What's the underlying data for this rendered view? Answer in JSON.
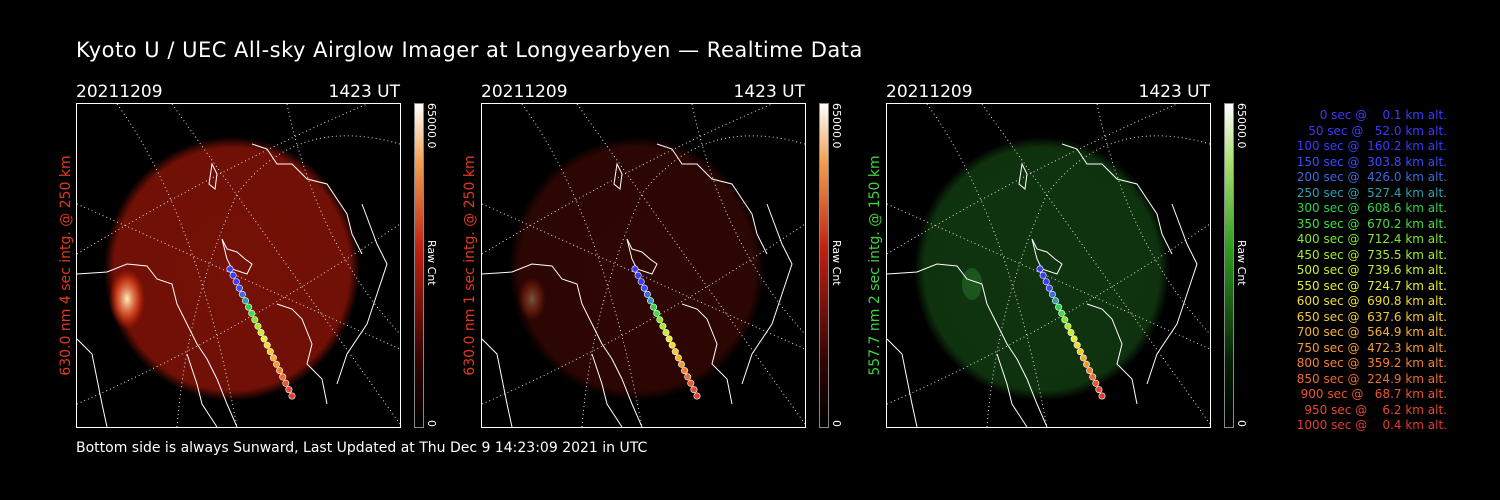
{
  "title": "Kyoto U / UEC All-sky Airglow Imager at Longyearbyen — Realtime Data",
  "footer": "Bottom side is always Sunward, Last Updated at Thu Dec  9 14:23:09 2021 in UTC",
  "panels": [
    {
      "date": "20211209",
      "time": "1423 UT",
      "side_label": "630.0 nm 4 sec intg. @ 250 km",
      "label_color": "#e03a1e",
      "cbar_max": "65000.0",
      "cbar_unit": "Raw Cnt",
      "cbar_min": "0",
      "glow": "#8a1408",
      "glow_opacity": 0.85,
      "cbar_color": "#c02010"
    },
    {
      "date": "20211209",
      "time": "1423 UT",
      "side_label": "630.0 nm 1 sec intg. @ 250 km",
      "label_color": "#e03a1e",
      "cbar_max": "65000.0",
      "cbar_unit": "Raw Cnt",
      "cbar_min": "0",
      "glow": "#3a0804",
      "glow_opacity": 0.8,
      "cbar_color": "#c02010"
    },
    {
      "date": "20211209",
      "time": "1423 UT",
      "side_label": "557.7 nm 2 sec intg. @ 150 km",
      "label_color": "#3fd43f",
      "cbar_max": "65000.0",
      "cbar_unit": "Raw Cnt",
      "cbar_min": "0",
      "glow": "#123d12",
      "glow_opacity": 0.85,
      "cbar_color": "#2e9a20"
    }
  ],
  "legend": [
    {
      "text": "0 sec @    0.1 km alt.",
      "color": "#3a3aff"
    },
    {
      "text": "50 sec @   52.0 km alt.",
      "color": "#3a3aff"
    },
    {
      "text": "100 sec @  160.2 km alt.",
      "color": "#3a3aff"
    },
    {
      "text": "150 sec @  303.8 km alt.",
      "color": "#3a4aff"
    },
    {
      "text": "200 sec @  426.0 km alt.",
      "color": "#3a6ae0"
    },
    {
      "text": "250 sec @  527.4 km alt.",
      "color": "#2aa0b0"
    },
    {
      "text": "300 sec @  608.6 km alt.",
      "color": "#2cd24a"
    },
    {
      "text": "350 sec @  670.2 km alt.",
      "color": "#3ee03e"
    },
    {
      "text": "400 sec @  712.4 km alt.",
      "color": "#7ee82c"
    },
    {
      "text": "450 sec @  735.5 km alt.",
      "color": "#a8ec28"
    },
    {
      "text": "500 sec @  739.6 km alt.",
      "color": "#c8ee28"
    },
    {
      "text": "550 sec @  724.7 km alt.",
      "color": "#e4ee30"
    },
    {
      "text": "600 sec @  690.8 km alt.",
      "color": "#f0dc30"
    },
    {
      "text": "650 sec @  637.6 km alt.",
      "color": "#f4c830"
    },
    {
      "text": "700 sec @  564.9 km alt.",
      "color": "#f6b030"
    },
    {
      "text": "750 sec @  472.3 km alt.",
      "color": "#f69a30"
    },
    {
      "text": "800 sec @  359.2 km alt.",
      "color": "#f68030"
    },
    {
      "text": "850 sec @  224.9 km alt.",
      "color": "#f06a30"
    },
    {
      "text": "900 sec @   68.7 km alt.",
      "color": "#ec5530"
    },
    {
      "text": "950 sec @    6.2 km alt.",
      "color": "#e84830"
    },
    {
      "text": "1000 sec @    0.4 km alt.",
      "color": "#e43a30"
    }
  ]
}
